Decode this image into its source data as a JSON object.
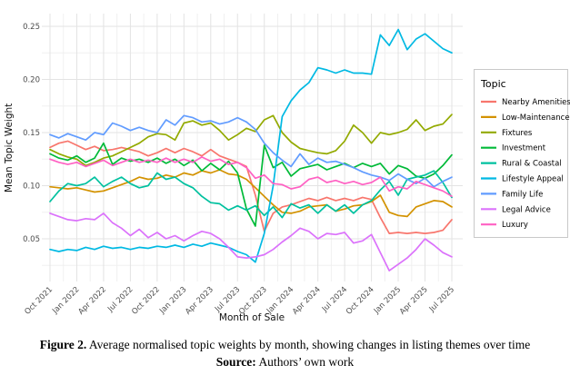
{
  "figure": {
    "caption_label": "Figure 2.",
    "caption_text": "Average normalised topic weights by month, showing changes in listing themes over time",
    "source_label": "Source:",
    "source_text": "Authors’ own work"
  },
  "chart_data": {
    "type": "line",
    "title": "",
    "xlabel": "Month of Sale",
    "ylabel": "Mean Topic Weight",
    "legend_title": "Topic",
    "legend_position": "right",
    "grid": true,
    "background": "#ffffff",
    "grid_major_color": "#e3e3e3",
    "grid_minor_color": "#f0f0f0",
    "tick_label_color": "#4d4d4d",
    "ylim": [
      0.009,
      0.262
    ],
    "yticks": [
      0.05,
      0.1,
      0.15,
      0.2,
      0.25
    ],
    "ytick_labels": [
      "0.05",
      "0.10",
      "0.15",
      "0.20",
      "0.25"
    ],
    "x_tick_labels": [
      "Oct 2021",
      "Jan 2022",
      "Apr 2022",
      "Jul 2022",
      "Oct 2022",
      "Jan 2023",
      "Apr 2023",
      "Jul 2023",
      "Oct 2023",
      "Jan 2024",
      "Apr 2024",
      "Jul 2024",
      "Oct 2024",
      "Jan 2025",
      "Apr 2025",
      "Jul 2025"
    ],
    "x": [
      "Oct 2021",
      "Nov 2021",
      "Dec 2021",
      "Jan 2022",
      "Feb 2022",
      "Mar 2022",
      "Apr 2022",
      "May 2022",
      "Jun 2022",
      "Jul 2022",
      "Aug 2022",
      "Sep 2022",
      "Oct 2022",
      "Nov 2022",
      "Dec 2022",
      "Jan 2023",
      "Feb 2023",
      "Mar 2023",
      "Apr 2023",
      "May 2023",
      "Jun 2023",
      "Jul 2023",
      "Aug 2023",
      "Sep 2023",
      "Oct 2023",
      "Nov 2023",
      "Dec 2023",
      "Jan 2024",
      "Feb 2024",
      "Mar 2024",
      "Apr 2024",
      "May 2024",
      "Jun 2024",
      "Jul 2024",
      "Aug 2024",
      "Sep 2024",
      "Oct 2024",
      "Nov 2024",
      "Dec 2024",
      "Jan 2025",
      "Feb 2025",
      "Mar 2025",
      "Apr 2025",
      "May 2025",
      "Jun 2025",
      "Jul 2025"
    ],
    "series": [
      {
        "name": "Nearby Amenities",
        "color": "#F8766D",
        "values": [
          0.136,
          0.14,
          0.142,
          0.138,
          0.134,
          0.137,
          0.133,
          0.134,
          0.136,
          0.134,
          0.132,
          0.128,
          0.131,
          0.135,
          0.131,
          0.135,
          0.132,
          0.128,
          0.134,
          0.128,
          0.125,
          0.122,
          0.118,
          0.091,
          0.057,
          0.074,
          0.08,
          0.082,
          0.085,
          0.088,
          0.086,
          0.089,
          0.086,
          0.088,
          0.086,
          0.089,
          0.087,
          0.07,
          0.055,
          0.056,
          0.055,
          0.056,
          0.055,
          0.056,
          0.058,
          0.068
        ]
      },
      {
        "name": "Low-Maintenance",
        "color": "#D39200",
        "values": [
          0.099,
          0.098,
          0.097,
          0.098,
          0.096,
          0.094,
          0.095,
          0.098,
          0.101,
          0.104,
          0.108,
          0.106,
          0.107,
          0.11,
          0.108,
          0.112,
          0.11,
          0.114,
          0.112,
          0.115,
          0.111,
          0.11,
          0.106,
          0.098,
          0.09,
          0.082,
          0.075,
          0.074,
          0.076,
          0.08,
          0.081,
          0.082,
          0.076,
          0.078,
          0.081,
          0.082,
          0.085,
          0.091,
          0.075,
          0.072,
          0.071,
          0.08,
          0.083,
          0.086,
          0.085,
          0.08
        ]
      },
      {
        "name": "Fixtures",
        "color": "#93AA00",
        "values": [
          0.134,
          0.13,
          0.127,
          0.125,
          0.119,
          0.122,
          0.126,
          0.128,
          0.132,
          0.136,
          0.14,
          0.146,
          0.149,
          0.148,
          0.143,
          0.159,
          0.161,
          0.157,
          0.159,
          0.152,
          0.143,
          0.148,
          0.154,
          0.151,
          0.162,
          0.166,
          0.15,
          0.141,
          0.135,
          0.133,
          0.131,
          0.13,
          0.133,
          0.142,
          0.157,
          0.15,
          0.14,
          0.15,
          0.148,
          0.15,
          0.153,
          0.162,
          0.152,
          0.156,
          0.158,
          0.167
        ]
      },
      {
        "name": "Investment",
        "color": "#00BA38",
        "values": [
          0.13,
          0.126,
          0.124,
          0.128,
          0.122,
          0.126,
          0.14,
          0.12,
          0.126,
          0.123,
          0.125,
          0.122,
          0.126,
          0.121,
          0.125,
          0.119,
          0.124,
          0.114,
          0.121,
          0.115,
          0.123,
          0.112,
          0.078,
          0.062,
          0.138,
          0.117,
          0.122,
          0.109,
          0.116,
          0.118,
          0.12,
          0.115,
          0.118,
          0.121,
          0.117,
          0.121,
          0.118,
          0.121,
          0.111,
          0.119,
          0.116,
          0.109,
          0.107,
          0.111,
          0.119,
          0.129
        ]
      },
      {
        "name": "Rural & Coastal",
        "color": "#00C19F",
        "values": [
          0.085,
          0.095,
          0.102,
          0.1,
          0.102,
          0.108,
          0.099,
          0.104,
          0.108,
          0.102,
          0.098,
          0.1,
          0.112,
          0.106,
          0.108,
          0.102,
          0.098,
          0.09,
          0.084,
          0.083,
          0.077,
          0.081,
          0.077,
          0.081,
          0.072,
          0.08,
          0.07,
          0.083,
          0.079,
          0.082,
          0.074,
          0.082,
          0.076,
          0.082,
          0.074,
          0.082,
          0.086,
          0.096,
          0.104,
          0.091,
          0.106,
          0.108,
          0.11,
          0.114,
          0.103,
          0.089
        ]
      },
      {
        "name": "Lifestyle Appeal",
        "color": "#00B9E3",
        "values": [
          0.04,
          0.038,
          0.04,
          0.039,
          0.042,
          0.04,
          0.043,
          0.041,
          0.042,
          0.04,
          0.042,
          0.041,
          0.043,
          0.042,
          0.044,
          0.042,
          0.045,
          0.043,
          0.046,
          0.044,
          0.042,
          0.038,
          0.035,
          0.028,
          0.055,
          0.1,
          0.165,
          0.18,
          0.19,
          0.197,
          0.211,
          0.209,
          0.206,
          0.209,
          0.206,
          0.206,
          0.205,
          0.242,
          0.232,
          0.247,
          0.228,
          0.238,
          0.243,
          0.236,
          0.229,
          0.225
        ]
      },
      {
        "name": "Family Life",
        "color": "#619CFF",
        "values": [
          0.148,
          0.145,
          0.149,
          0.146,
          0.143,
          0.15,
          0.148,
          0.159,
          0.156,
          0.152,
          0.155,
          0.152,
          0.15,
          0.162,
          0.157,
          0.166,
          0.164,
          0.16,
          0.161,
          0.158,
          0.16,
          0.164,
          0.16,
          0.153,
          0.14,
          0.131,
          0.124,
          0.118,
          0.13,
          0.12,
          0.126,
          0.122,
          0.123,
          0.12,
          0.117,
          0.113,
          0.11,
          0.108,
          0.105,
          0.111,
          0.106,
          0.102,
          0.107,
          0.099,
          0.104,
          0.108
        ]
      },
      {
        "name": "Legal Advice",
        "color": "#DB72FB",
        "values": [
          0.074,
          0.071,
          0.068,
          0.067,
          0.069,
          0.068,
          0.074,
          0.065,
          0.06,
          0.053,
          0.059,
          0.051,
          0.056,
          0.05,
          0.053,
          0.048,
          0.053,
          0.057,
          0.055,
          0.05,
          0.042,
          0.033,
          0.032,
          0.033,
          0.035,
          0.04,
          0.047,
          0.053,
          0.06,
          0.057,
          0.05,
          0.055,
          0.054,
          0.056,
          0.046,
          0.048,
          0.054,
          0.037,
          0.02,
          0.026,
          0.032,
          0.04,
          0.05,
          0.044,
          0.037,
          0.033
        ]
      },
      {
        "name": "Luxury",
        "color": "#FF61C3",
        "values": [
          0.125,
          0.122,
          0.12,
          0.122,
          0.118,
          0.121,
          0.124,
          0.119,
          0.122,
          0.125,
          0.122,
          0.124,
          0.122,
          0.126,
          0.122,
          0.125,
          0.122,
          0.127,
          0.123,
          0.125,
          0.12,
          0.122,
          0.117,
          0.107,
          0.11,
          0.102,
          0.101,
          0.097,
          0.099,
          0.106,
          0.108,
          0.103,
          0.105,
          0.102,
          0.104,
          0.101,
          0.103,
          0.108,
          0.095,
          0.099,
          0.097,
          0.104,
          0.101,
          0.098,
          0.095,
          0.09
        ]
      }
    ]
  }
}
